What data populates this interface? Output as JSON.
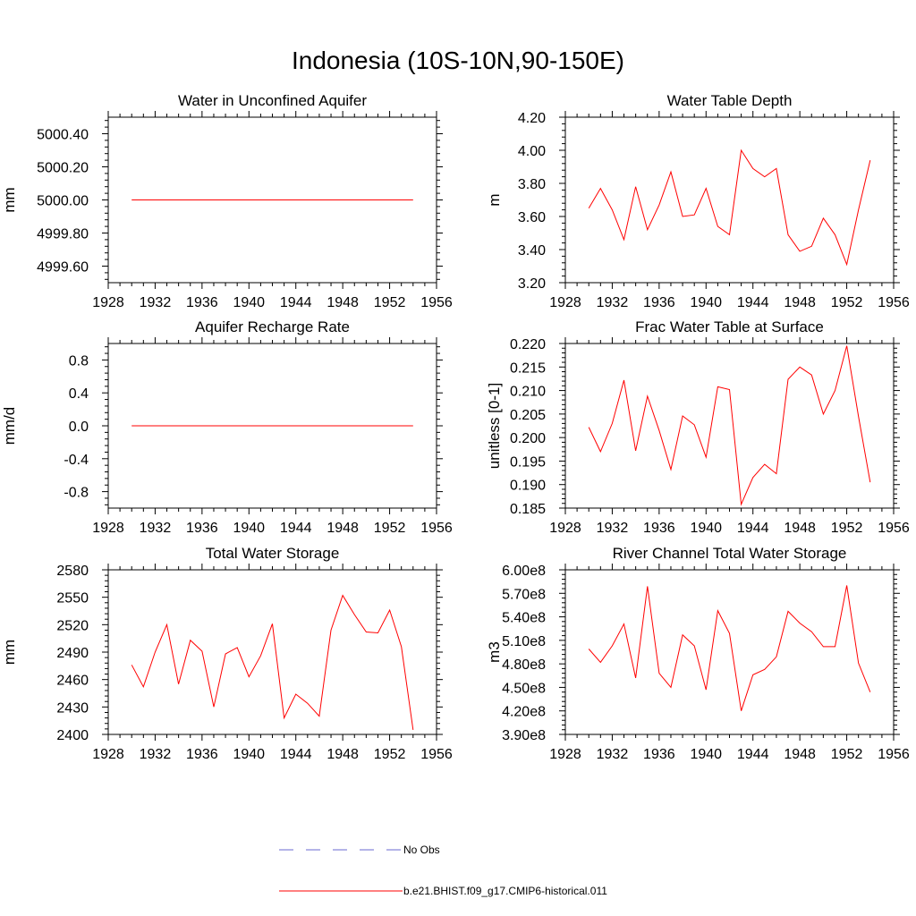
{
  "page": {
    "title": "Indonesia (10S-10N,90-150E)"
  },
  "legend": {
    "items": [
      {
        "label": "No Obs",
        "color": "#6a6ad0",
        "style": "dashed"
      },
      {
        "label": "b.e21.BHIST.f09_g17.CMIP6-historical.011",
        "color": "#ff0000",
        "style": "solid"
      }
    ]
  },
  "chart_data": [
    {
      "type": "line",
      "title": "Water in Unconfined Aquifer",
      "ylabel": "mm",
      "xlim": [
        1928,
        1956
      ],
      "ylim": [
        4999.5,
        5000.5
      ],
      "xticks": [
        1928,
        1932,
        1936,
        1940,
        1944,
        1948,
        1952,
        1956
      ],
      "yticks": [
        4999.6,
        4999.8,
        5000.0,
        5000.2,
        5000.4
      ],
      "ytick_labels": [
        "4999.60",
        "4999.80",
        "5000.00",
        "5000.20",
        "5000.40"
      ],
      "series": [
        {
          "color": "#ff0000",
          "x": [
            1930,
            1931,
            1932,
            1933,
            1934,
            1935,
            1936,
            1937,
            1938,
            1939,
            1940,
            1941,
            1942,
            1943,
            1944,
            1945,
            1946,
            1947,
            1948,
            1949,
            1950,
            1951,
            1952,
            1953,
            1954
          ],
          "values": [
            5000,
            5000,
            5000,
            5000,
            5000,
            5000,
            5000,
            5000,
            5000,
            5000,
            5000,
            5000,
            5000,
            5000,
            5000,
            5000,
            5000,
            5000,
            5000,
            5000,
            5000,
            5000,
            5000,
            5000,
            5000
          ]
        }
      ]
    },
    {
      "type": "line",
      "title": "Water Table Depth",
      "ylabel": "m",
      "xlim": [
        1928,
        1956
      ],
      "ylim": [
        3.2,
        4.2
      ],
      "xticks": [
        1928,
        1932,
        1936,
        1940,
        1944,
        1948,
        1952,
        1956
      ],
      "yticks": [
        3.2,
        3.4,
        3.6,
        3.8,
        4.0,
        4.2
      ],
      "ytick_labels": [
        "3.20",
        "3.40",
        "3.60",
        "3.80",
        "4.00",
        "4.20"
      ],
      "series": [
        {
          "color": "#ff0000",
          "x": [
            1930,
            1931,
            1932,
            1933,
            1934,
            1935,
            1936,
            1937,
            1938,
            1939,
            1940,
            1941,
            1942,
            1943,
            1944,
            1945,
            1946,
            1947,
            1948,
            1949,
            1950,
            1951,
            1952,
            1953,
            1954
          ],
          "values": [
            3.65,
            3.77,
            3.64,
            3.46,
            3.78,
            3.52,
            3.67,
            3.87,
            3.6,
            3.61,
            3.77,
            3.54,
            3.49,
            4.0,
            3.89,
            3.84,
            3.89,
            3.49,
            3.39,
            3.42,
            3.59,
            3.49,
            3.31,
            3.64,
            3.94
          ]
        }
      ]
    },
    {
      "type": "line",
      "title": "Aquifer Recharge Rate",
      "ylabel": "mm/d",
      "xlim": [
        1928,
        1956
      ],
      "ylim": [
        -1.0,
        1.0
      ],
      "xticks": [
        1928,
        1932,
        1936,
        1940,
        1944,
        1948,
        1952,
        1956
      ],
      "yticks": [
        -0.8,
        -0.4,
        0.0,
        0.4,
        0.8
      ],
      "ytick_labels": [
        "-0.8",
        "-0.4",
        "0.0",
        "0.4",
        "0.8"
      ],
      "series": [
        {
          "color": "#ff0000",
          "x": [
            1930,
            1931,
            1932,
            1933,
            1934,
            1935,
            1936,
            1937,
            1938,
            1939,
            1940,
            1941,
            1942,
            1943,
            1944,
            1945,
            1946,
            1947,
            1948,
            1949,
            1950,
            1951,
            1952,
            1953,
            1954
          ],
          "values": [
            0,
            0,
            0,
            0,
            0,
            0,
            0,
            0,
            0,
            0,
            0,
            0,
            0,
            0,
            0,
            0,
            0,
            0,
            0,
            0,
            0,
            0,
            0,
            0,
            0
          ]
        }
      ]
    },
    {
      "type": "line",
      "title": "Frac Water Table at Surface",
      "ylabel": "unitless [0-1]",
      "xlim": [
        1928,
        1956
      ],
      "ylim": [
        0.185,
        0.22
      ],
      "xticks": [
        1928,
        1932,
        1936,
        1940,
        1944,
        1948,
        1952,
        1956
      ],
      "yticks": [
        0.185,
        0.19,
        0.195,
        0.2,
        0.205,
        0.21,
        0.215,
        0.22
      ],
      "ytick_labels": [
        "0.185",
        "0.190",
        "0.195",
        "0.200",
        "0.205",
        "0.210",
        "0.215",
        "0.220"
      ],
      "series": [
        {
          "color": "#ff0000",
          "x": [
            1930,
            1931,
            1932,
            1933,
            1934,
            1935,
            1936,
            1937,
            1938,
            1939,
            1940,
            1941,
            1942,
            1943,
            1944,
            1945,
            1946,
            1947,
            1948,
            1949,
            1950,
            1951,
            1952,
            1953,
            1954
          ],
          "values": [
            0.2022,
            0.197,
            0.203,
            0.2122,
            0.1972,
            0.2088,
            0.2015,
            0.1932,
            0.2046,
            0.2027,
            0.1958,
            0.2108,
            0.2102,
            0.1858,
            0.1915,
            0.1943,
            0.1923,
            0.2124,
            0.215,
            0.2133,
            0.205,
            0.21,
            0.2195,
            0.2045,
            0.1905
          ]
        }
      ]
    },
    {
      "type": "line",
      "title": "Total Water Storage",
      "ylabel": "mm",
      "xlim": [
        1928,
        1956
      ],
      "ylim": [
        2400,
        2580
      ],
      "xticks": [
        1928,
        1932,
        1936,
        1940,
        1944,
        1948,
        1952,
        1956
      ],
      "yticks": [
        2400,
        2430,
        2460,
        2490,
        2520,
        2550,
        2580
      ],
      "ytick_labels": [
        "2400",
        "2430",
        "2460",
        "2490",
        "2520",
        "2550",
        "2580"
      ],
      "series": [
        {
          "color": "#ff0000",
          "x": [
            1930,
            1931,
            1932,
            1933,
            1934,
            1935,
            1936,
            1937,
            1938,
            1939,
            1940,
            1941,
            1942,
            1943,
            1944,
            1945,
            1946,
            1947,
            1948,
            1949,
            1950,
            1951,
            1952,
            1953,
            1954
          ],
          "values": [
            2476,
            2452,
            2490,
            2520,
            2455,
            2503,
            2491,
            2430,
            2488,
            2495,
            2463,
            2486,
            2521,
            2418,
            2444,
            2434,
            2420,
            2514,
            2552,
            2531,
            2512,
            2511,
            2536,
            2496,
            2405
          ]
        }
      ]
    },
    {
      "type": "line",
      "title": "River Channel Total Water Storage",
      "ylabel": "m3",
      "xlim": [
        1928,
        1956
      ],
      "ylim": [
        390000000,
        600000000
      ],
      "xticks": [
        1928,
        1932,
        1936,
        1940,
        1944,
        1948,
        1952,
        1956
      ],
      "yticks": [
        390000000,
        420000000,
        450000000,
        480000000,
        510000000,
        540000000,
        570000000,
        600000000
      ],
      "ytick_labels": [
        "3.90e8",
        "4.20e8",
        "4.50e8",
        "4.80e8",
        "5.10e8",
        "5.40e8",
        "5.70e8",
        "6.00e8"
      ],
      "series": [
        {
          "color": "#ff0000",
          "x": [
            1930,
            1931,
            1932,
            1933,
            1934,
            1935,
            1936,
            1937,
            1938,
            1939,
            1940,
            1941,
            1942,
            1943,
            1944,
            1945,
            1946,
            1947,
            1948,
            1949,
            1950,
            1951,
            1952,
            1953,
            1954
          ],
          "values": [
            499000000,
            482000000,
            503000000,
            531000000,
            462000000,
            579000000,
            468000000,
            450000000,
            517000000,
            503000000,
            447000000,
            548000000,
            519000000,
            420000000,
            466000000,
            473000000,
            489000000,
            547000000,
            532000000,
            521000000,
            502000000,
            502000000,
            580000000,
            481000000,
            444000000
          ]
        }
      ]
    }
  ]
}
